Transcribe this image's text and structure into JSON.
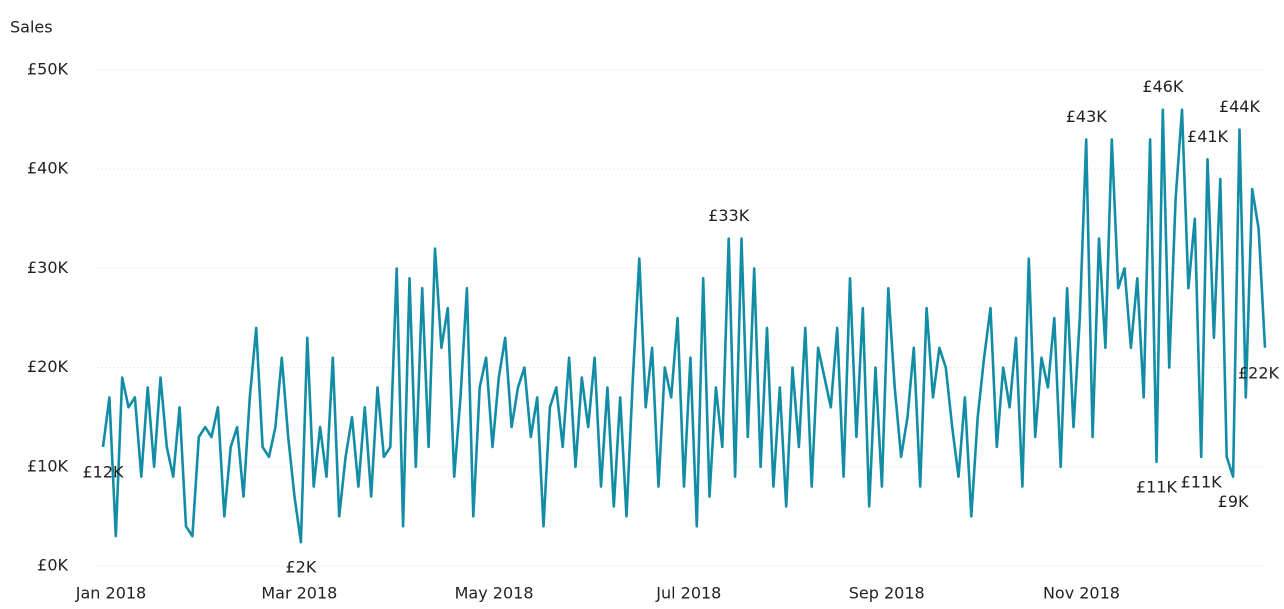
{
  "chart_data": {
    "type": "line",
    "y_label": "Sales",
    "xlim": [
      0,
      364
    ],
    "xticks": [
      {
        "value": 0,
        "label": "Jan 2018"
      },
      {
        "value": 59,
        "label": "Mar 2018"
      },
      {
        "value": 120,
        "label": "May 2018"
      },
      {
        "value": 181,
        "label": "Jul 2018"
      },
      {
        "value": 243,
        "label": "Sep 2018"
      },
      {
        "value": 304,
        "label": "Nov 2018"
      }
    ],
    "ylim": [
      0,
      50
    ],
    "yticks": [
      {
        "value": 0,
        "label": "£0K"
      },
      {
        "value": 10,
        "label": "£10K"
      },
      {
        "value": 20,
        "label": "£20K"
      },
      {
        "value": 30,
        "label": "£30K"
      },
      {
        "value": 40,
        "label": "£40K"
      },
      {
        "value": 50,
        "label": "£50K"
      }
    ],
    "grid": true,
    "series": [
      {
        "color": "#138da6",
        "x": [
          0,
          2,
          4,
          6,
          8,
          10,
          12,
          14,
          16,
          18,
          20,
          22,
          24,
          26,
          28,
          30,
          32,
          34,
          36,
          38,
          40,
          42,
          44,
          46,
          48,
          50,
          52,
          54,
          56,
          58,
          60,
          62,
          64,
          66,
          68,
          70,
          72,
          74,
          76,
          78,
          80,
          82,
          84,
          86,
          88,
          90,
          92,
          94,
          96,
          98,
          100,
          102,
          104,
          106,
          108,
          110,
          112,
          114,
          116,
          118,
          120,
          122,
          124,
          126,
          128,
          130,
          132,
          134,
          136,
          138,
          140,
          142,
          144,
          146,
          148,
          150,
          152,
          154,
          156,
          158,
          160,
          162,
          164,
          166,
          168,
          170,
          172,
          174,
          176,
          178,
          180,
          182,
          184,
          186,
          188,
          190,
          192,
          194,
          196,
          198,
          200,
          202,
          204,
          206,
          208,
          210,
          212,
          214,
          216,
          218,
          220,
          222,
          224,
          226,
          228,
          230,
          232,
          234,
          236,
          238,
          240,
          242,
          244,
          246,
          248,
          250,
          252,
          254,
          256,
          258,
          260,
          262,
          264,
          266,
          268,
          270,
          272,
          274,
          276,
          278,
          280,
          282,
          284,
          286,
          288,
          290,
          292,
          294,
          296,
          298,
          300,
          302,
          304,
          306,
          308,
          310,
          312,
          314,
          316,
          318,
          320,
          322,
          324,
          326,
          328,
          330,
          332,
          334,
          336,
          338,
          340,
          342,
          344,
          346,
          348,
          350,
          352,
          354,
          356,
          358,
          360,
          362,
          364
        ],
        "values": [
          12,
          17,
          3,
          19,
          16,
          17,
          9,
          18,
          10,
          19,
          12,
          9,
          16,
          4,
          3,
          13,
          14,
          13,
          16,
          5,
          12,
          14,
          7,
          17,
          24,
          12,
          11,
          14,
          21,
          13,
          7,
          2.4,
          23,
          8,
          14,
          9,
          21,
          5,
          11,
          15,
          8,
          16,
          7,
          18,
          11,
          12,
          30,
          4,
          29,
          10,
          28,
          12,
          32,
          22,
          26,
          9,
          17,
          28,
          5,
          18,
          21,
          12,
          19,
          23,
          14,
          18,
          20,
          13,
          17,
          4,
          16,
          18,
          12,
          21,
          10,
          19,
          14,
          21,
          8,
          18,
          6,
          17,
          5,
          19,
          31,
          16,
          22,
          8,
          20,
          17,
          25,
          8,
          21,
          4,
          29,
          7,
          18,
          12,
          33,
          9,
          33,
          13,
          30,
          10,
          24,
          8,
          18,
          6,
          20,
          12,
          24,
          8,
          22,
          19,
          16,
          24,
          9,
          29,
          13,
          26,
          6,
          20,
          8,
          28,
          18,
          11,
          15,
          22,
          8,
          26,
          17,
          22,
          20,
          14,
          9,
          17,
          5,
          15,
          21,
          26,
          12,
          20,
          16,
          23,
          8,
          31,
          13,
          21,
          18,
          25,
          10,
          28,
          14,
          25,
          43,
          13,
          33,
          22,
          43,
          28,
          30,
          22,
          29,
          17,
          43,
          10.5,
          46,
          20,
          37,
          46,
          28,
          35,
          11,
          41,
          23,
          39,
          11,
          9,
          44,
          17,
          38,
          34,
          22
        ]
      }
    ],
    "annotations": [
      {
        "x": 0,
        "y": 12,
        "label": "£12K"
      },
      {
        "x": 62,
        "y": 2.4,
        "label": "£2K"
      },
      {
        "x": 196,
        "y": 33,
        "label": "£33K"
      },
      {
        "x": 308,
        "y": 43,
        "label": "£43K"
      },
      {
        "x": 332,
        "y": 46,
        "label": "£46K"
      },
      {
        "x": 346,
        "y": 41,
        "label": "£41K"
      },
      {
        "x": 356,
        "y": 44,
        "label": "£44K"
      },
      {
        "x": 330,
        "y": 10.5,
        "label": "£11K"
      },
      {
        "x": 344,
        "y": 11,
        "label": "£11K"
      },
      {
        "x": 354,
        "y": 9,
        "label": "£9K"
      },
      {
        "x": 364,
        "y": 22,
        "label": "£22K"
      }
    ]
  }
}
